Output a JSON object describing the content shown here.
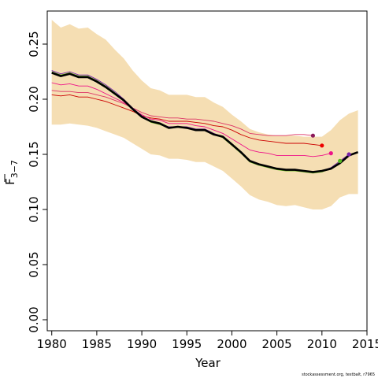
{
  "chart_data": {
    "type": "line",
    "title": "",
    "xlabel": "Year",
    "ylabel_main": "F",
    "ylabel_sub": "3−7",
    "xlim": [
      1979.5,
      2015
    ],
    "ylim": [
      -0.01,
      0.28
    ],
    "xticks": [
      "1980",
      "1985",
      "1990",
      "1995",
      "2000",
      "2005",
      "2010",
      "2015"
    ],
    "yticks": [
      "0.00",
      "0.05",
      "0.10",
      "0.15",
      "0.20",
      "0.25"
    ],
    "grid": false,
    "legend": "none",
    "credit": "stockassessment.org, testbalt, r7965",
    "band": {
      "x": [
        1980,
        1981,
        1982,
        1983,
        1984,
        1985,
        1986,
        1987,
        1988,
        1989,
        1990,
        1991,
        1992,
        1993,
        1994,
        1995,
        1996,
        1997,
        1998,
        1999,
        2000,
        2001,
        2002,
        2003,
        2004,
        2005,
        2006,
        2007,
        2008,
        2009,
        2010,
        2011,
        2012,
        2013,
        2014
      ],
      "upper": [
        0.272,
        0.265,
        0.268,
        0.264,
        0.265,
        0.259,
        0.254,
        0.245,
        0.237,
        0.226,
        0.217,
        0.21,
        0.208,
        0.204,
        0.204,
        0.204,
        0.202,
        0.202,
        0.197,
        0.193,
        0.186,
        0.18,
        0.173,
        0.17,
        0.168,
        0.167,
        0.167,
        0.167,
        0.166,
        0.166,
        0.166,
        0.172,
        0.181,
        0.187,
        0.19
      ],
      "lower": [
        0.177,
        0.177,
        0.178,
        0.177,
        0.176,
        0.174,
        0.171,
        0.168,
        0.165,
        0.16,
        0.155,
        0.15,
        0.149,
        0.146,
        0.146,
        0.145,
        0.143,
        0.143,
        0.139,
        0.135,
        0.128,
        0.121,
        0.113,
        0.109,
        0.107,
        0.104,
        0.103,
        0.104,
        0.102,
        0.1,
        0.1,
        0.103,
        0.111,
        0.114,
        0.114
      ],
      "color": "#F5DEB3"
    },
    "series": [
      {
        "color": "#000000",
        "x": [
          1980,
          1981,
          1982,
          1983,
          1984,
          1985,
          1986,
          1987,
          1988,
          1989,
          1990,
          1991,
          1992,
          1993,
          1994,
          1995,
          1996,
          1997,
          1998,
          1999,
          2000,
          2001,
          2002,
          2003,
          2004,
          2005,
          2006,
          2007,
          2008,
          2009,
          2010,
          2011,
          2012,
          2013,
          2014
        ],
        "y": [
          0.224,
          0.221,
          0.223,
          0.22,
          0.22,
          0.216,
          0.211,
          0.205,
          0.199,
          0.191,
          0.184,
          0.18,
          0.178,
          0.174,
          0.175,
          0.174,
          0.172,
          0.172,
          0.168,
          0.166,
          0.159,
          0.152,
          0.144,
          0.141,
          0.139,
          0.137,
          0.136,
          0.136,
          0.135,
          0.134,
          0.135,
          0.137,
          0.142,
          0.149,
          0.152
        ]
      },
      {
        "color": "#66BB22",
        "x": [
          1980,
          1981,
          1982,
          1983,
          1984,
          1985,
          1986,
          1987,
          1988,
          1989,
          1990,
          1991,
          1992,
          1993,
          1994,
          1995,
          1996,
          1997,
          1998,
          1999,
          2000,
          2001,
          2002,
          2003,
          2004,
          2005,
          2006,
          2007,
          2008,
          2009,
          2010,
          2011,
          2012
        ],
        "y": [
          0.225,
          0.222,
          0.224,
          0.221,
          0.221,
          0.217,
          0.212,
          0.206,
          0.2,
          0.191,
          0.184,
          0.179,
          0.177,
          0.174,
          0.175,
          0.174,
          0.172,
          0.172,
          0.168,
          0.165,
          0.158,
          0.151,
          0.143,
          0.14,
          0.138,
          0.136,
          0.135,
          0.135,
          0.134,
          0.133,
          0.134,
          0.137,
          0.144
        ]
      },
      {
        "color": "#CC0000",
        "x": [
          1980,
          1981,
          1982,
          1983,
          1984,
          1985,
          1986,
          1987,
          1988,
          1989,
          1990,
          1991,
          1992,
          1993,
          1994,
          1995,
          1996,
          1997,
          1998,
          1999,
          2000,
          2001,
          2002,
          2003,
          2004,
          2005,
          2006,
          2007,
          2008,
          2009,
          2010
        ],
        "y": [
          0.204,
          0.203,
          0.204,
          0.202,
          0.202,
          0.2,
          0.198,
          0.195,
          0.192,
          0.189,
          0.185,
          0.183,
          0.182,
          0.18,
          0.18,
          0.18,
          0.179,
          0.178,
          0.176,
          0.175,
          0.172,
          0.168,
          0.165,
          0.163,
          0.162,
          0.161,
          0.16,
          0.16,
          0.16,
          0.159,
          0.158
        ]
      },
      {
        "color": "#EE1188",
        "x": [
          1980,
          1981,
          1982,
          1983,
          1984,
          1985,
          1986,
          1987,
          1988,
          1989,
          1990,
          1991,
          1992,
          1993,
          1994,
          1995,
          1996,
          1997,
          1998,
          1999,
          2000,
          2001,
          2002,
          2003,
          2004,
          2005,
          2006,
          2007,
          2008,
          2009,
          2010,
          2011
        ],
        "y": [
          0.215,
          0.213,
          0.214,
          0.212,
          0.212,
          0.209,
          0.205,
          0.201,
          0.197,
          0.191,
          0.186,
          0.182,
          0.181,
          0.178,
          0.178,
          0.178,
          0.176,
          0.175,
          0.172,
          0.169,
          0.164,
          0.159,
          0.154,
          0.152,
          0.151,
          0.149,
          0.149,
          0.149,
          0.149,
          0.148,
          0.149,
          0.151
        ]
      },
      {
        "color": "#DD3366",
        "x": [
          1980,
          1981,
          1982,
          1983,
          1984,
          1985,
          1986,
          1987,
          1988,
          1989,
          1990,
          1991,
          1992,
          1993,
          1994,
          1995,
          1996,
          1997,
          1998,
          1999,
          2000,
          2001,
          2002,
          2003,
          2004,
          2005,
          2006,
          2007,
          2008,
          2009
        ],
        "y": [
          0.208,
          0.207,
          0.207,
          0.206,
          0.206,
          0.204,
          0.202,
          0.199,
          0.196,
          0.192,
          0.188,
          0.185,
          0.184,
          0.183,
          0.183,
          0.182,
          0.182,
          0.181,
          0.18,
          0.178,
          0.176,
          0.173,
          0.169,
          0.168,
          0.167,
          0.167,
          0.167,
          0.168,
          0.168,
          0.167
        ]
      },
      {
        "color": "#7722AA",
        "x": [
          1980,
          1981,
          1982,
          1983,
          1984,
          1985,
          1986,
          1987,
          1988,
          1989,
          1990,
          1991,
          1992,
          1993,
          1994,
          1995,
          1996,
          1997,
          1998,
          1999,
          2000,
          2001,
          2002,
          2003,
          2004,
          2005,
          2006,
          2007,
          2008,
          2009,
          2010,
          2011,
          2012,
          2013
        ],
        "y": [
          0.226,
          0.223,
          0.225,
          0.222,
          0.222,
          0.218,
          0.213,
          0.207,
          0.2,
          0.192,
          0.185,
          0.18,
          0.178,
          0.175,
          0.175,
          0.175,
          0.173,
          0.173,
          0.169,
          0.166,
          0.159,
          0.152,
          0.144,
          0.141,
          0.139,
          0.137,
          0.136,
          0.136,
          0.135,
          0.134,
          0.135,
          0.138,
          0.144,
          0.15
        ]
      }
    ],
    "endpoints": [
      {
        "x": 2009,
        "y": 0.167,
        "color": "#8B1A5A"
      },
      {
        "x": 2010,
        "y": 0.158,
        "color": "#EE0000"
      },
      {
        "x": 2011,
        "y": 0.151,
        "color": "#EE1188"
      },
      {
        "x": 2012,
        "y": 0.144,
        "color": "#55BB22"
      },
      {
        "x": 2013,
        "y": 0.15,
        "color": "#7722AA"
      }
    ]
  }
}
